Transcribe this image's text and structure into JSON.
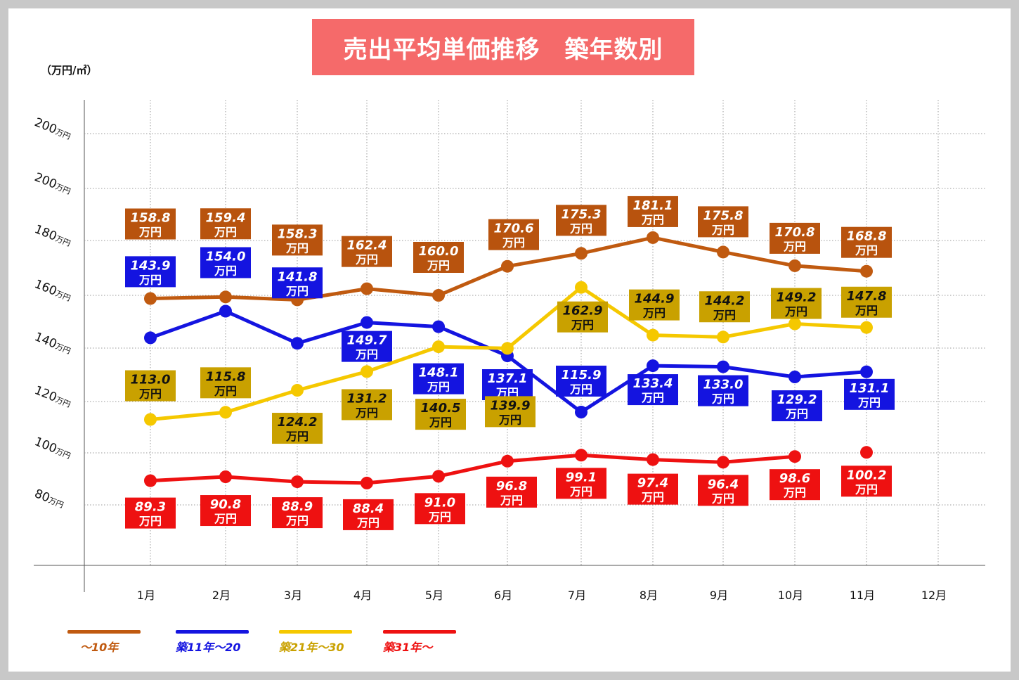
{
  "title": "売出平均単価推移　築年数別",
  "unit_label": "（万円/㎡）",
  "chart_data": {
    "type": "line",
    "title": "売出平均単価推移　築年数別",
    "ylabel": "（万円/㎡）",
    "categories": [
      "1月",
      "2月",
      "3月",
      "4月",
      "5月",
      "6月",
      "7月",
      "8月",
      "9月",
      "10月",
      "11月",
      "12月"
    ],
    "y_tick_labels": [
      "200",
      "200",
      "180",
      "160",
      "140",
      "120",
      "100",
      "80"
    ],
    "y_tick_unit": "万円",
    "value_unit": "万円",
    "grid": true,
    "legend_position": "bottom-left",
    "series": [
      {
        "name": "～10年",
        "color": "#c05a10",
        "label_bg": "#b8530e",
        "label_fg": "#ffffff",
        "values": [
          158.8,
          159.4,
          158.3,
          162.4,
          160.0,
          170.6,
          175.3,
          181.1,
          175.8,
          170.8,
          168.8,
          null
        ]
      },
      {
        "name": "築11年～20",
        "color": "#1414e0",
        "label_bg": "#1414e0",
        "label_fg": "#ffffff",
        "values": [
          143.9,
          154.0,
          141.8,
          149.7,
          148.1,
          137.1,
          115.9,
          133.4,
          133.0,
          129.2,
          131.1,
          null
        ]
      },
      {
        "name": "築21年～30",
        "color": "#f5c800",
        "label_bg": "#c9a100",
        "label_fg": "#111111",
        "legend_text_color": "#c9a100",
        "values": [
          113.0,
          115.8,
          124.2,
          131.2,
          140.5,
          139.9,
          162.9,
          144.9,
          144.2,
          149.2,
          147.8,
          null
        ]
      },
      {
        "name": "築31年～",
        "color": "#ee1111",
        "label_bg": "#ee1111",
        "label_fg": "#ffffff",
        "values": [
          89.3,
          90.8,
          88.9,
          88.4,
          91.0,
          96.8,
          99.1,
          97.4,
          96.4,
          98.6,
          100.2,
          null
        ]
      }
    ]
  }
}
